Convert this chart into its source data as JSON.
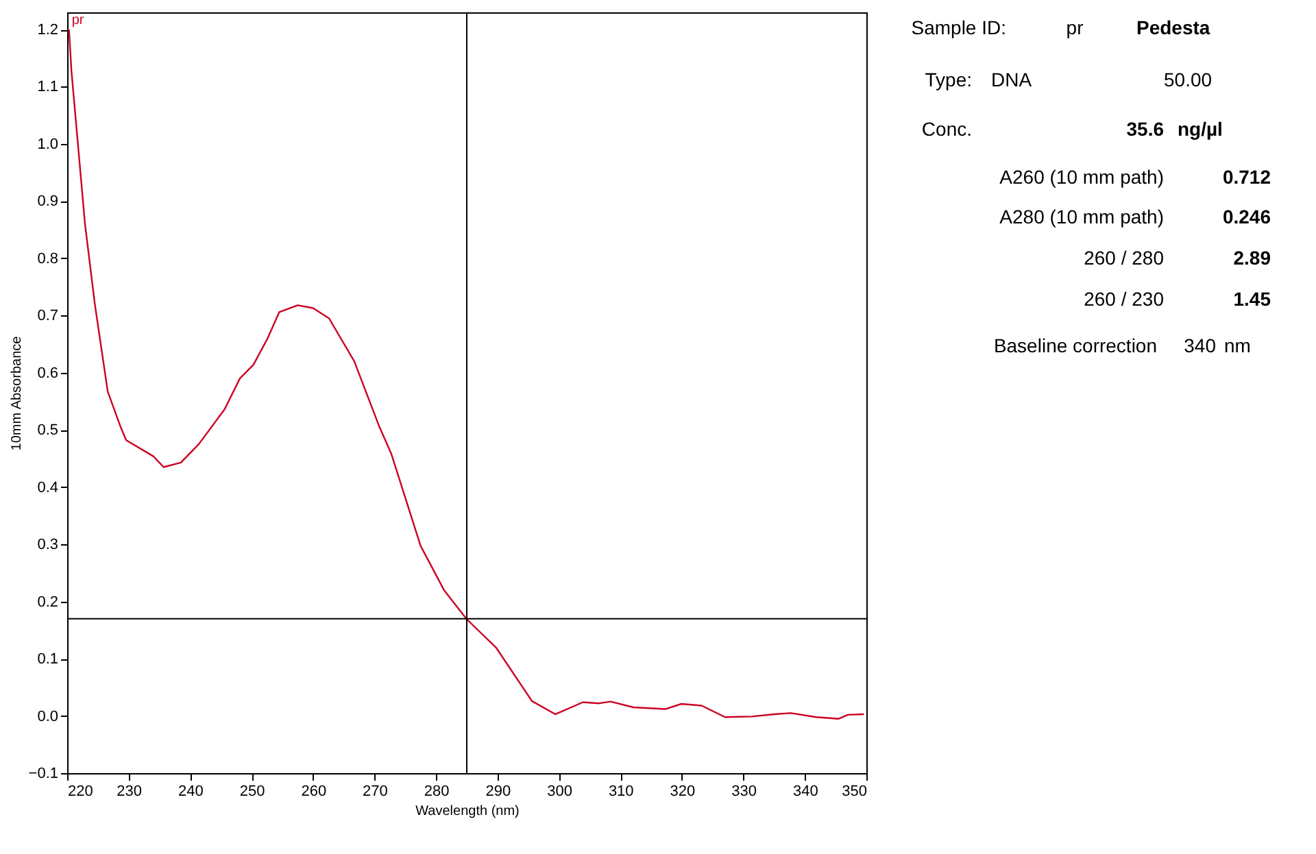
{
  "chart_data": [
    {
      "type": "line",
      "xlabel": "Wavelength (nm)",
      "ylabel": "10mm Absorbance",
      "x": [
        220.3,
        220.7,
        222.9,
        224.5,
        226.6,
        228.7,
        229.6,
        234,
        235.7,
        238.5,
        241.4,
        245.6,
        248.1,
        250.3,
        252.6,
        254.5,
        257.5,
        260,
        262.6,
        266.7,
        270.8,
        272.7,
        277.5,
        281.3,
        285,
        289.8,
        295.6,
        299.4,
        303.9,
        306.5,
        308.4,
        312.1,
        317.3,
        319.9,
        323.2,
        327,
        331.4,
        335.1,
        337.7,
        341.8,
        345.5,
        347,
        349.6
      ],
      "series": [
        {
          "color": "#cc0022",
          "values": [
            1.2,
            1.127,
            0.86,
            0.72,
            0.567,
            0.505,
            0.482,
            0.454,
            0.435,
            0.443,
            0.475,
            0.536,
            0.59,
            0.614,
            0.66,
            0.706,
            0.718,
            0.713,
            0.695,
            0.62,
            0.505,
            0.459,
            0.297,
            0.22,
            0.169,
            0.119,
            0.026,
            0.003,
            0.024,
            0.022,
            0.025,
            0.015,
            0.012,
            0.021,
            0.018,
            -0.002,
            -0.001,
            0.003,
            0.005,
            -0.002,
            -0.005,
            0.002,
            0.003
          ]
        }
      ],
      "xlim": [
        220,
        350
      ],
      "xticks": [
        220,
        230,
        240,
        250,
        260,
        270,
        280,
        290,
        300,
        310,
        320,
        330,
        340,
        350
      ],
      "ylim": [
        -0.1,
        1.23
      ],
      "yticks": [
        -0.1,
        {
          "value": 0,
          "label": "0.0"
        },
        0.1,
        0.2,
        0.3,
        0.4,
        0.5,
        0.6,
        0.7,
        0.8,
        0.9,
        {
          "value": 1,
          "label": "1.0"
        },
        1.1,
        1.2
      ],
      "ref_lines": [
        {
          "axis": "x",
          "value": 285,
          "color": "#000000"
        },
        {
          "axis": "y",
          "value": 0.17,
          "color": "#000000"
        }
      ],
      "annotations": [
        {
          "text": "pr",
          "x": 220.3,
          "y": 1.2
        }
      ],
      "grid": false,
      "marker": "none",
      "line_style": "solid"
    },
    {
      "type": "other",
      "annotations": [
        "Sample ID:",
        "pr",
        "Pedesta",
        "Type:",
        "DNA",
        "50.00",
        "Conc.",
        "35.6",
        "ng/µl",
        "A260 (10 mm path)",
        "0.712",
        "A280 (10 mm path)",
        "0.246",
        "260 / 280",
        "2.89",
        "260 / 230",
        "1.45",
        "Baseline correction",
        "340",
        "nm"
      ]
    }
  ]
}
